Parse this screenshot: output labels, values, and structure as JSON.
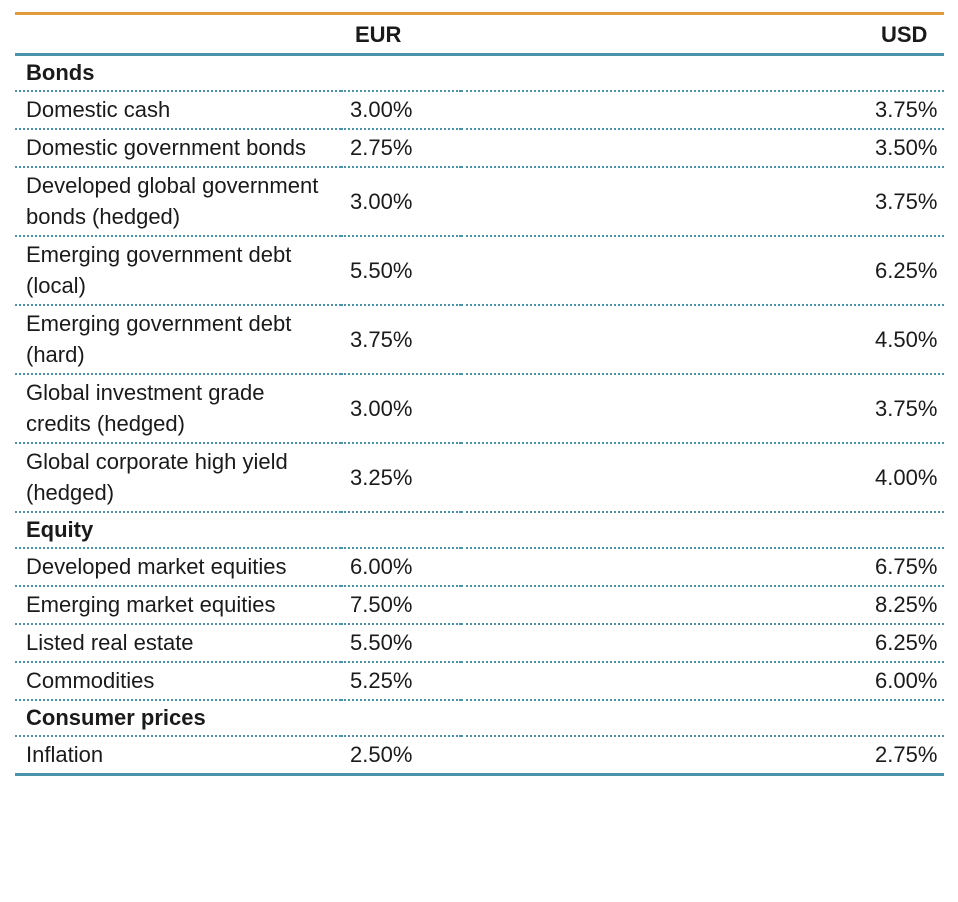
{
  "table": {
    "headers": {
      "label": "",
      "eur": "EUR",
      "usd": "USD"
    },
    "sections": [
      {
        "title": "Bonds",
        "rows": [
          {
            "label": "Domestic cash",
            "eur": "3.00%",
            "usd": "3.75%"
          },
          {
            "label": "Domestic government bonds",
            "eur": "2.75%",
            "usd": "3.50%"
          },
          {
            "label": "Developed global government bonds (hedged)",
            "eur": "3.00%",
            "usd": "3.75%"
          },
          {
            "label": "Emerging government debt (local)",
            "eur": "5.50%",
            "usd": "6.25%"
          },
          {
            "label": "Emerging government debt (hard)",
            "eur": "3.75%",
            "usd": "4.50%"
          },
          {
            "label": "Global investment grade credits (hedged)",
            "eur": "3.00%",
            "usd": "3.75%"
          },
          {
            "label": "Global corporate high yield (hedged)",
            "eur": "3.25%",
            "usd": "4.00%"
          }
        ]
      },
      {
        "title": "Equity",
        "rows": [
          {
            "label": "Developed market equities",
            "eur": "6.00%",
            "usd": "6.75%"
          },
          {
            "label": "Emerging market equities",
            "eur": "7.50%",
            "usd": "8.25%"
          },
          {
            "label": "Listed real estate",
            "eur": "5.50%",
            "usd": "6.25%"
          },
          {
            "label": "Commodities",
            "eur": "5.25%",
            "usd": "6.00%"
          }
        ]
      },
      {
        "title": "Consumer prices",
        "rows": [
          {
            "label": "Inflation",
            "eur": "2.50%",
            "usd": "2.75%"
          }
        ]
      }
    ],
    "colors": {
      "top_rule": "#e09b3d",
      "rule": "#4a93a8"
    }
  }
}
